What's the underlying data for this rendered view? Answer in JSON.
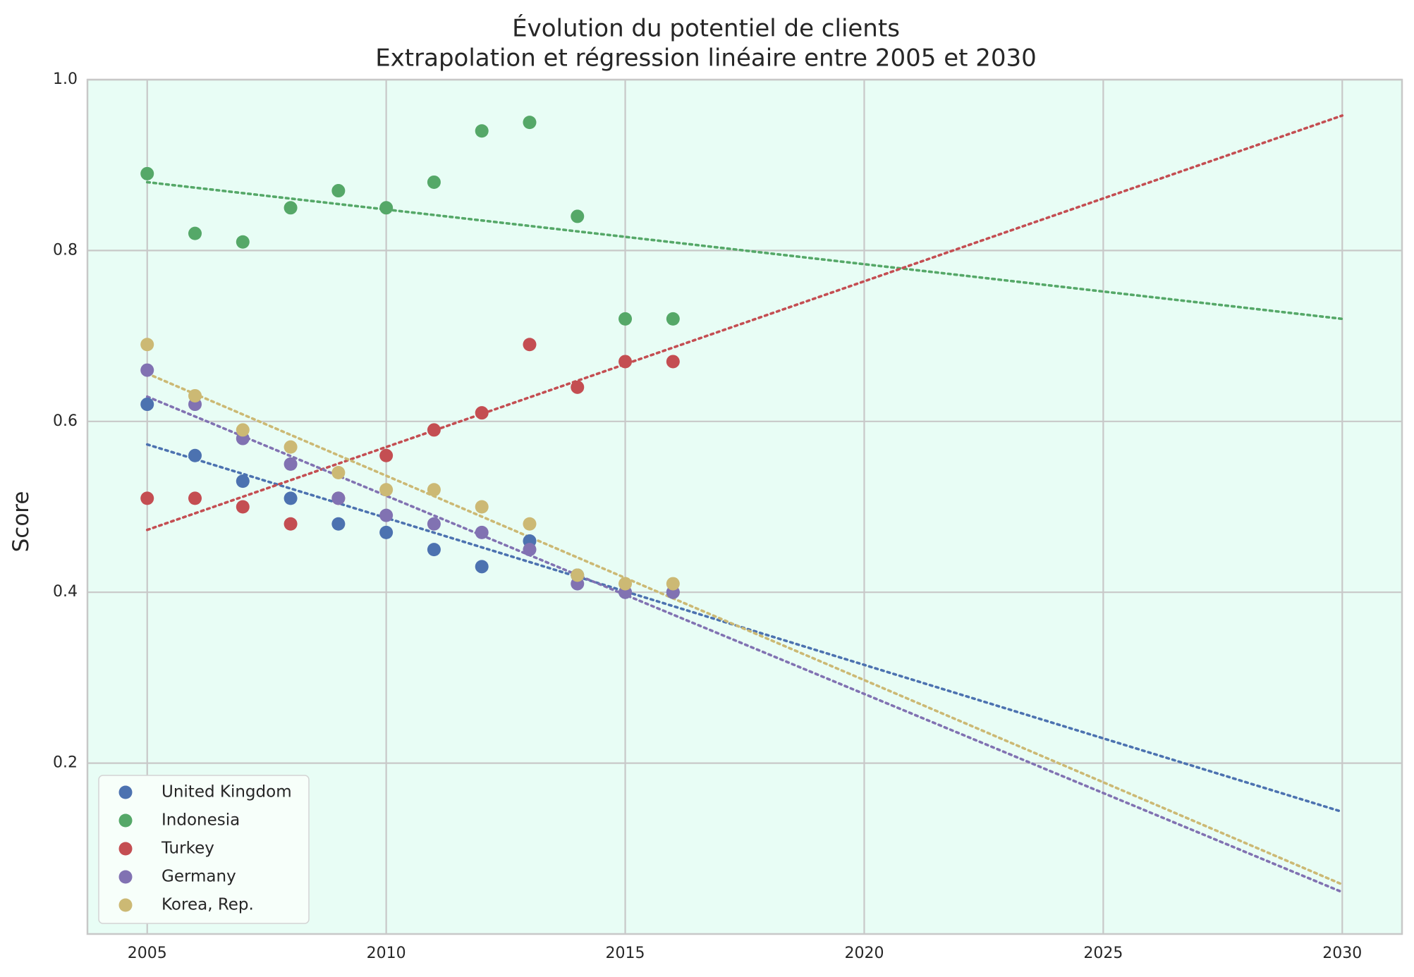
{
  "chart_data": {
    "type": "scatter",
    "title_line1": "Évolution du potentiel de clients",
    "title_line2": "Extrapolation et régression linéaire entre 2005 et 2030",
    "xlabel": "",
    "ylabel": "Score",
    "xlim": [
      2003.75,
      2031.25
    ],
    "ylim": [
      0.0,
      1.0
    ],
    "x_ticks": [
      2005,
      2010,
      2015,
      2020,
      2025,
      2030
    ],
    "x_tick_labels": [
      "2005",
      "2010",
      "2015",
      "2020",
      "2025",
      "2030"
    ],
    "y_ticks": [
      0.2,
      0.4,
      0.6,
      0.8,
      1.0
    ],
    "y_tick_labels": [
      "0.2",
      "0.4",
      "0.6",
      "0.8",
      "1.0"
    ],
    "grid": true,
    "background_color": "#e8fdf5",
    "grid_color": "#c8c8c8",
    "legend_position": "lower-left",
    "series": [
      {
        "name": "United Kingdom",
        "color": "#4c72b0",
        "x": [
          2005,
          2006,
          2007,
          2008,
          2009,
          2010,
          2011,
          2012,
          2013,
          2014,
          2015,
          2016
        ],
        "y": [
          0.62,
          0.56,
          0.53,
          0.51,
          0.48,
          0.47,
          0.45,
          0.43,
          0.46,
          0.42,
          0.4,
          0.4
        ],
        "trend": {
          "x": [
            2005,
            2030
          ],
          "y": [
            0.573,
            0.143
          ]
        }
      },
      {
        "name": "Indonesia",
        "color": "#55a868",
        "x": [
          2005,
          2006,
          2007,
          2008,
          2009,
          2010,
          2011,
          2012,
          2013,
          2014,
          2015,
          2016
        ],
        "y": [
          0.89,
          0.82,
          0.81,
          0.85,
          0.87,
          0.85,
          0.88,
          0.94,
          0.95,
          0.84,
          0.72,
          0.72
        ],
        "trend": {
          "x": [
            2005,
            2030
          ],
          "y": [
            0.88,
            0.72
          ]
        }
      },
      {
        "name": "Turkey",
        "color": "#c44e52",
        "x": [
          2005,
          2006,
          2007,
          2008,
          2009,
          2010,
          2011,
          2012,
          2013,
          2014,
          2015,
          2016
        ],
        "y": [
          0.51,
          0.51,
          0.5,
          0.48,
          0.51,
          0.56,
          0.59,
          0.61,
          0.69,
          0.64,
          0.67,
          0.67
        ],
        "trend": {
          "x": [
            2005,
            2030
          ],
          "y": [
            0.473,
            0.958
          ]
        }
      },
      {
        "name": "Germany",
        "color": "#8172b2",
        "x": [
          2005,
          2006,
          2007,
          2008,
          2009,
          2010,
          2011,
          2012,
          2013,
          2014,
          2015,
          2016
        ],
        "y": [
          0.66,
          0.62,
          0.58,
          0.55,
          0.51,
          0.49,
          0.48,
          0.47,
          0.45,
          0.41,
          0.4,
          0.4
        ],
        "trend": {
          "x": [
            2005,
            2030
          ],
          "y": [
            0.629,
            0.049
          ]
        }
      },
      {
        "name": "Korea, Rep.",
        "color": "#ccb974",
        "x": [
          2005,
          2006,
          2007,
          2008,
          2009,
          2010,
          2011,
          2012,
          2013,
          2014,
          2015,
          2016
        ],
        "y": [
          0.69,
          0.63,
          0.59,
          0.57,
          0.54,
          0.52,
          0.52,
          0.5,
          0.48,
          0.42,
          0.41,
          0.41
        ],
        "trend": {
          "x": [
            2005,
            2030
          ],
          "y": [
            0.656,
            0.058
          ]
        }
      }
    ]
  }
}
